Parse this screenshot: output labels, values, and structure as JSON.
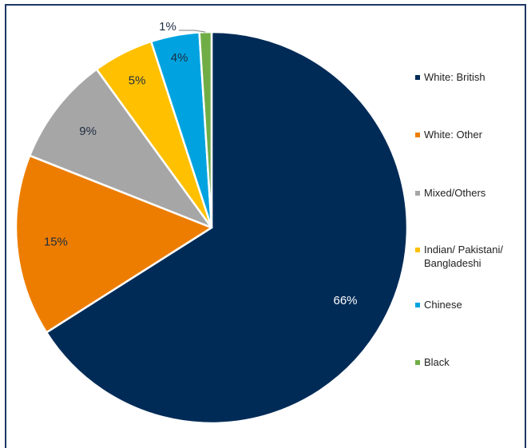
{
  "chart_data": {
    "type": "pie",
    "title": "",
    "legend_position": "right",
    "slices": [
      {
        "name": "White: British",
        "value": 66,
        "label": "66%",
        "color": "#002b57",
        "label_color": "#ffffff"
      },
      {
        "name": "White: Other",
        "value": 15,
        "label": "15%",
        "color": "#ed7d00",
        "label_color": "#1f2d40"
      },
      {
        "name": "Mixed/Others",
        "value": 9,
        "label": "9%",
        "color": "#a6a6a6",
        "label_color": "#1f2d40"
      },
      {
        "name": "Indian/ Pakistani/ Bangladeshi",
        "value": 5,
        "label": "5%",
        "color": "#ffc000",
        "label_color": "#1f2d40"
      },
      {
        "name": "Chinese",
        "value": 4,
        "label": "4%",
        "color": "#00a3e0",
        "label_color": "#1f2d40"
      },
      {
        "name": "Black",
        "value": 1,
        "label": "1%",
        "color": "#70ad47",
        "label_color": "#1f2d40"
      }
    ]
  }
}
